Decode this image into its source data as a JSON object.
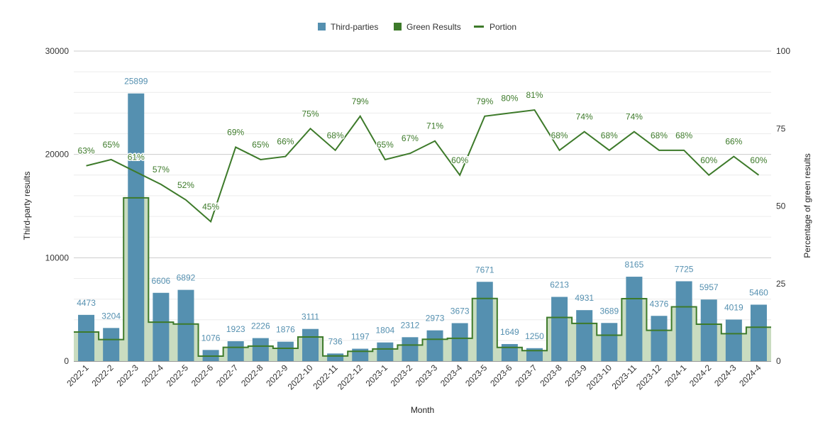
{
  "chart_data": {
    "type": "bar",
    "categories": [
      "2022-1",
      "2022-2",
      "2022-3",
      "2022-4",
      "2022-5",
      "2022-6",
      "2022-7",
      "2022-8",
      "2022-9",
      "2022-10",
      "2022-11",
      "2022-12",
      "2023-1",
      "2023-2",
      "2023-3",
      "2023-4",
      "2023-5",
      "2023-6",
      "2023-7",
      "2023-8",
      "2023-9",
      "2023-10",
      "2023-11",
      "2023-12",
      "2024-1",
      "2024-2",
      "2024-3",
      "2024-4"
    ],
    "series": [
      {
        "name": "Third-parties",
        "type": "bar",
        "axis": "left",
        "color": "#5590b0",
        "values": [
          4473,
          3204,
          25899,
          6606,
          6892,
          1076,
          1923,
          2226,
          1876,
          3111,
          736,
          1197,
          1804,
          2312,
          2973,
          3673,
          7671,
          1649,
          1250,
          6213,
          4931,
          3689,
          8165,
          4376,
          7725,
          5957,
          4019,
          5460
        ]
      },
      {
        "name": "Green Results",
        "type": "stepped-area",
        "axis": "left",
        "color": "#3d7a2a",
        "fill": "#c9dcc0",
        "values": [
          2818,
          2083,
          15798,
          3765,
          3584,
          484,
          1327,
          1447,
          1238,
          2333,
          500,
          946,
          1173,
          1549,
          2111,
          2204,
          6060,
          1319,
          1013,
          4225,
          3649,
          2509,
          6042,
          2976,
          5253,
          3574,
          2653,
          3276
        ]
      },
      {
        "name": "Portion",
        "type": "line",
        "axis": "right",
        "color": "#3d7a2a",
        "values": [
          63,
          65,
          61,
          57,
          52,
          45,
          69,
          65,
          66,
          75,
          68,
          79,
          65,
          67,
          71,
          60,
          79,
          80,
          81,
          68,
          74,
          68,
          74,
          68,
          68,
          60,
          66,
          60
        ],
        "labels": [
          "63%",
          "65%",
          "61%",
          "57%",
          "52%",
          "45%",
          "69%",
          "65%",
          "66%",
          "75%",
          "68%",
          "79%",
          "65%",
          "67%",
          "71%",
          "60%",
          "79%",
          "80%",
          "81%",
          "68%",
          "74%",
          "68%",
          "74%",
          "68%",
          "68%",
          "60%",
          "66%",
          "60%"
        ]
      }
    ],
    "xlabel": "Month",
    "ylabel": "Third-party results",
    "y2label": "Percentage of green results",
    "ylim": [
      0,
      30000
    ],
    "y2lim": [
      0,
      100
    ],
    "yticks": [
      "0",
      "10000",
      "20000",
      "30000"
    ],
    "y2ticks": [
      "0",
      "25",
      "50",
      "75",
      "100"
    ],
    "grid": true,
    "legend": "top-center"
  }
}
